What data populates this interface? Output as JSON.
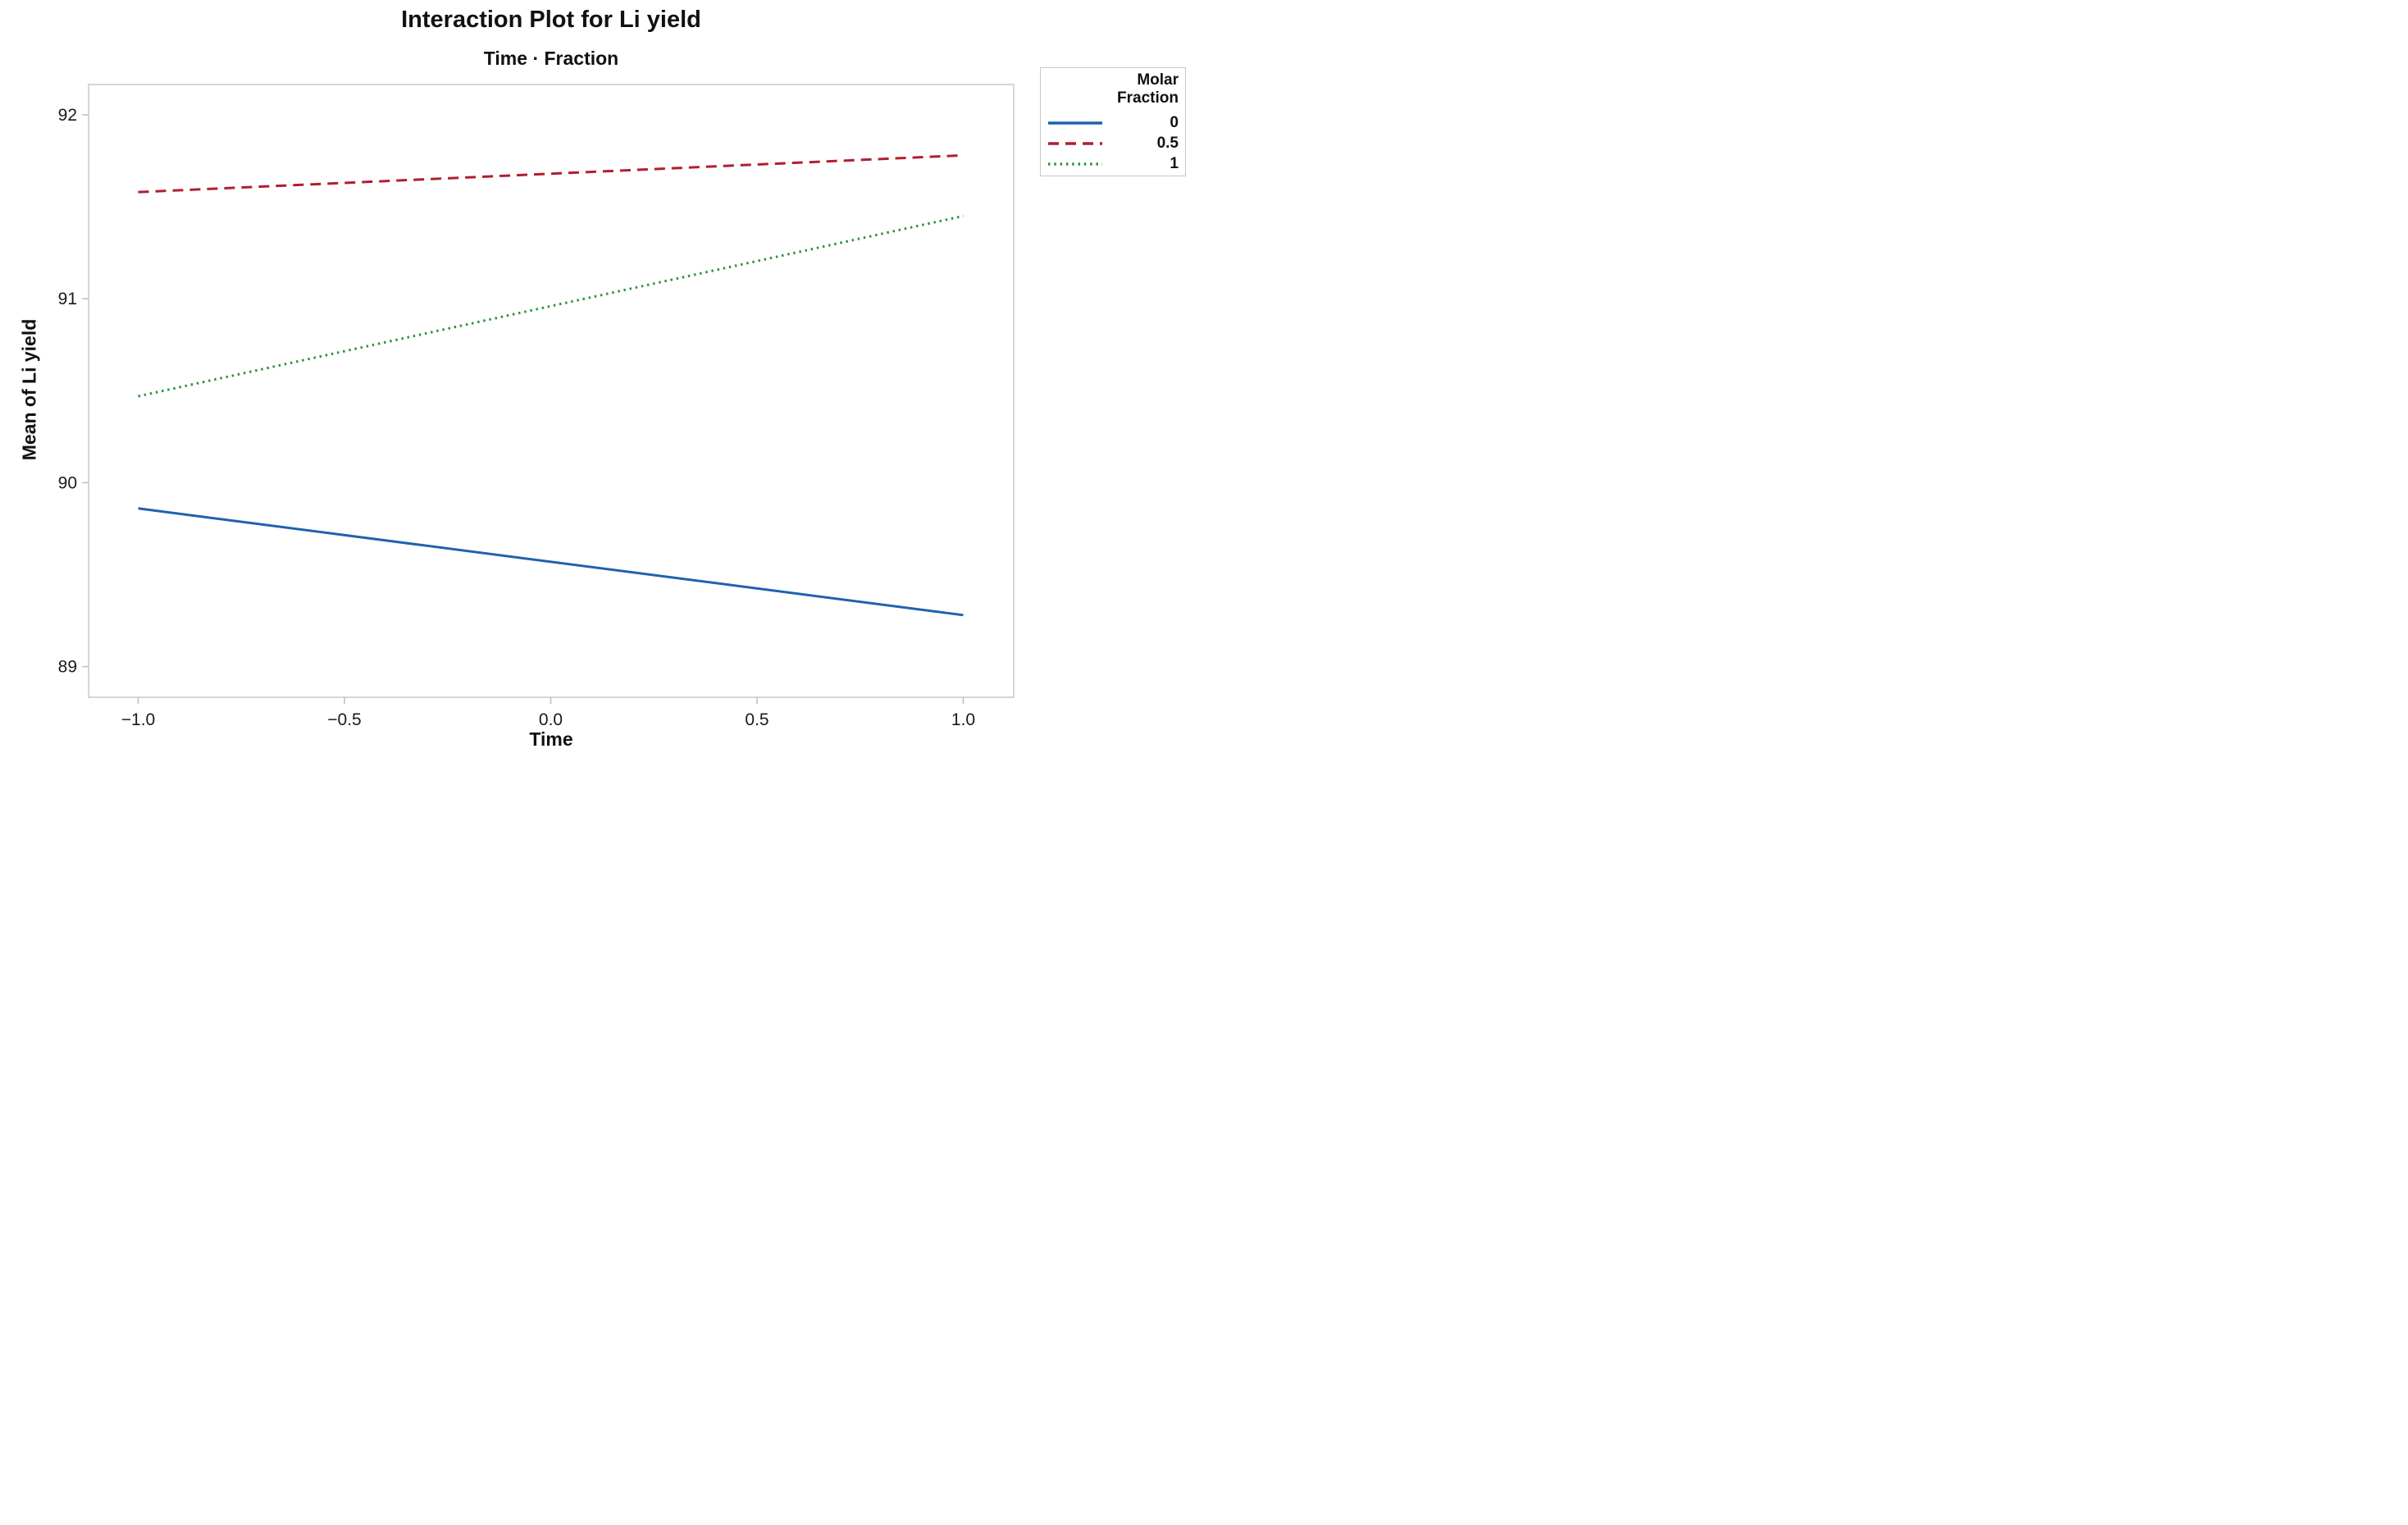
{
  "chart_data": {
    "type": "line",
    "title": "Interaction Plot for Li yield",
    "subtitle": "Time · Fraction",
    "xlabel": "Time",
    "ylabel": "Mean of Li yield",
    "x": [
      -1,
      1
    ],
    "series": [
      {
        "name": "0",
        "style": "solid",
        "color": "#1f62ae",
        "values": [
          89.86,
          89.28
        ]
      },
      {
        "name": "0.5",
        "style": "dashed",
        "color": "#b01e32",
        "values": [
          91.58,
          91.78
        ]
      },
      {
        "name": "1",
        "style": "dotted",
        "color": "#2c9440",
        "values": [
          90.47,
          91.45
        ]
      }
    ],
    "xlim": [
      -1.12,
      1.12
    ],
    "ylim": [
      88.83,
      92.17
    ],
    "xticks": [
      -1.0,
      -0.5,
      0.0,
      0.5,
      1.0
    ],
    "xtick_labels": [
      "−1.0",
      "−0.5",
      "0.0",
      "0.5",
      "1.0"
    ],
    "yticks": [
      89,
      90,
      91,
      92
    ],
    "ytick_labels": [
      "89",
      "90",
      "91",
      "92"
    ],
    "grid": false,
    "legend": {
      "title_lines": [
        "Molar",
        "Fraction"
      ],
      "entries": [
        "0",
        "0.5",
        "1"
      ],
      "position": "top-right-outside"
    }
  },
  "colors": {
    "plot_border": "#c8c8c8",
    "tick_mark": "#bdbdbd",
    "tick_text": "#1a1a1a",
    "legend_border": "#c8c8c8"
  }
}
